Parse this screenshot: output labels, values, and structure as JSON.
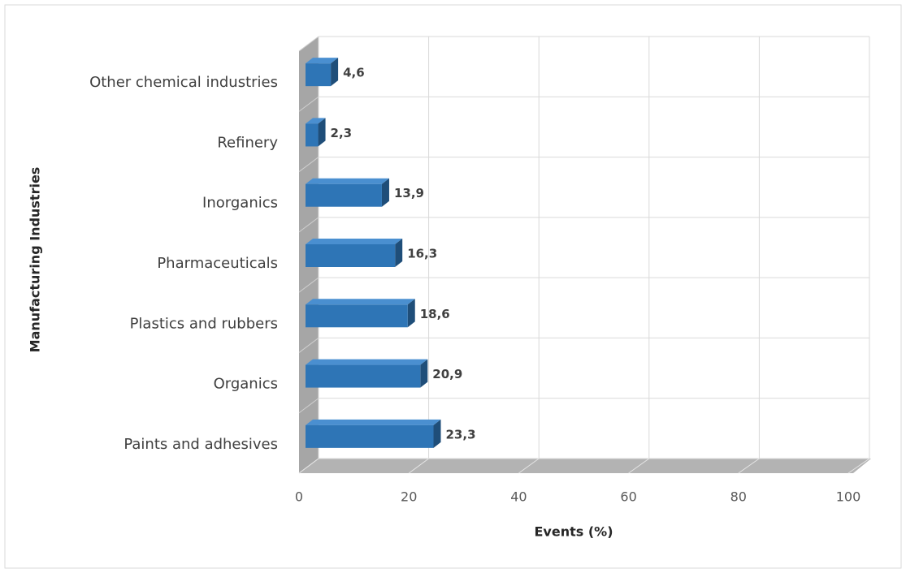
{
  "chart_data": {
    "type": "bar3d",
    "orientation": "horizontal",
    "categories": [
      "Other chemical industries",
      "Refinery",
      "Inorganics",
      "Pharmaceuticals",
      "Plastics and rubbers",
      "Organics",
      "Paints and adhesives"
    ],
    "values": [
      4.6,
      2.3,
      13.9,
      16.3,
      18.6,
      20.9,
      23.3
    ],
    "value_labels": [
      "4,6",
      "2,3",
      "13,9",
      "16,3",
      "18,6",
      "20,9",
      "23,3"
    ],
    "color": "#2e75b6",
    "xlim": [
      0,
      100
    ],
    "xticks": [
      0,
      20,
      40,
      60,
      80,
      100
    ],
    "xlabel": "Events (%)",
    "ylabel": "Manufacturing Industries",
    "grid": true
  }
}
